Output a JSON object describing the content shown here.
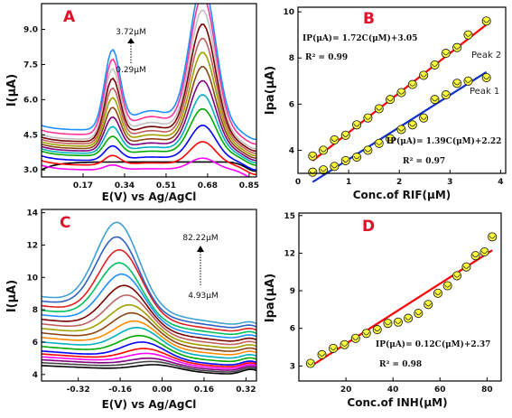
{
  "chart_data": [
    {
      "type": "line",
      "panel": "A",
      "xlabel": "E(V) vs Ag/AgCl",
      "ylabel": "I(μA)",
      "xticks": [
        "0.17",
        "0.34",
        "0.51",
        "0.68",
        "0.85"
      ],
      "yticks": [
        "3.0",
        "4.5",
        "6.0",
        "7.5",
        "9.0"
      ],
      "xlim": [
        0.0,
        0.88
      ],
      "ylim": [
        2.7,
        10.1
      ],
      "annotation_top": "3.72μM",
      "annotation_bottom": "0.29μM",
      "series_colors": [
        "#000000",
        "#ff00ff",
        "#ff0000",
        "#0000ff",
        "#00aa00",
        "#00b0c0",
        "#800080",
        "#8b4513",
        "#a0a000",
        "#c06060",
        "#7a0000",
        "#c0c0c0",
        "#ff3399",
        "#1e90ff"
      ],
      "peak1_potential": 0.29,
      "peak2_potential": 0.66,
      "peak1_heights": [
        0.0,
        0.2,
        0.4,
        0.6,
        0.8,
        1.1,
        1.4,
        1.7,
        2.0,
        2.3,
        2.6,
        2.9,
        3.1,
        3.3
      ],
      "peak2_heights": [
        0.0,
        0.5,
        1.0,
        1.5,
        2.0,
        2.5,
        3.0,
        3.5,
        4.0,
        4.5,
        5.0,
        5.5,
        5.9,
        6.2
      ],
      "start_levels": [
        3.0,
        3.2,
        3.4,
        3.6,
        3.8,
        3.9,
        4.0,
        4.1,
        4.2,
        4.3,
        4.4,
        4.5,
        4.7,
        4.9
      ]
    },
    {
      "type": "scatter",
      "panel": "B",
      "xlabel": "Conc.of RIF(μM)",
      "ylabel": "Ipa(μA)",
      "xticks": [
        "0",
        "1",
        "2",
        "3",
        "4"
      ],
      "yticks": [
        "4",
        "6",
        "8",
        "10"
      ],
      "xlim": [
        0,
        4.1
      ],
      "ylim": [
        3.0,
        10.2
      ],
      "series": [
        {
          "name": "Peak 2",
          "equation": "IP(μA)= 1.72C(μM)+3.05",
          "r2": "R² = 0.99",
          "slope": 1.72,
          "intercept": 3.05,
          "line_color": "#ff0000",
          "x": [
            0.29,
            0.5,
            0.72,
            0.94,
            1.16,
            1.38,
            1.6,
            1.82,
            2.04,
            2.26,
            2.48,
            2.7,
            2.92,
            3.14,
            3.36,
            3.72
          ],
          "y": [
            3.75,
            4.0,
            4.45,
            4.65,
            5.1,
            5.4,
            5.8,
            6.2,
            6.5,
            6.85,
            7.25,
            7.7,
            8.2,
            8.45,
            9.0,
            9.6
          ]
        },
        {
          "name": "Peak 1",
          "equation": "IP(μA)= 1.39C(μM)+2.22",
          "r2": "R² = 0.97",
          "slope": 1.39,
          "intercept": 2.22,
          "line_color": "#1030c8",
          "x": [
            0.29,
            0.5,
            0.72,
            0.94,
            1.16,
            1.38,
            1.6,
            1.82,
            2.04,
            2.26,
            2.48,
            2.7,
            2.92,
            3.14,
            3.36,
            3.72
          ],
          "y": [
            3.05,
            3.15,
            3.3,
            3.55,
            3.7,
            4.0,
            4.3,
            4.5,
            4.9,
            5.1,
            5.4,
            6.2,
            6.4,
            6.9,
            7.0,
            7.15
          ]
        }
      ]
    },
    {
      "type": "line",
      "panel": "C",
      "xlabel": "E(V) vs Ag/AgCl",
      "ylabel": "I(μA)",
      "xticks": [
        "-0.32",
        "-0.16",
        "0.00",
        "0.16",
        "0.32"
      ],
      "yticks": [
        "4",
        "6",
        "8",
        "10",
        "12",
        "14"
      ],
      "xlim": [
        -0.46,
        0.36
      ],
      "ylim": [
        3.6,
        14.2
      ],
      "annotation_top": "82.22μM",
      "annotation_bottom": "4.93μM",
      "series_colors": [
        "#000000",
        "#444444",
        "#800080",
        "#ff00ff",
        "#ff0000",
        "#0000ff",
        "#00aa00",
        "#00b0c0",
        "#ff8c00",
        "#8b4513",
        "#a0a000",
        "#c06060",
        "#7a0000",
        "#1e90ff",
        "#00c060",
        "#e02020",
        "#3060c0",
        "#40a0d0"
      ],
      "peak_potentials": [
        -0.02,
        -0.03,
        -0.04,
        -0.05,
        -0.06,
        -0.07,
        -0.08,
        -0.09,
        -0.1,
        -0.11,
        -0.12,
        -0.13,
        -0.14,
        -0.15,
        -0.16,
        -0.16,
        -0.17,
        -0.17
      ],
      "peak_currents": [
        4.6,
        4.8,
        5.0,
        5.3,
        5.6,
        6.0,
        6.4,
        6.9,
        7.3,
        7.8,
        8.3,
        8.9,
        9.5,
        10.2,
        10.9,
        11.7,
        12.5,
        13.4
      ],
      "base_levels": [
        4.3,
        4.4,
        4.5,
        4.6,
        4.7,
        4.8,
        5.0,
        5.2,
        5.4,
        5.6,
        5.8,
        6.0,
        6.2,
        6.4,
        6.6,
        6.8,
        7.0,
        7.2
      ]
    },
    {
      "type": "scatter",
      "panel": "D",
      "xlabel": "Conc.of INH(μM)",
      "ylabel": "Ipa(μA)",
      "xticks": [
        "20",
        "40",
        "60",
        "80"
      ],
      "yticks": [
        "3",
        "6",
        "9",
        "12",
        "15"
      ],
      "xlim": [
        0,
        86
      ],
      "ylim": [
        1.8,
        15.2
      ],
      "series": [
        {
          "name": "",
          "equation": "IP(μA)= 0.12C(μM)+2.37",
          "r2": "R² = 0.98",
          "slope": 0.12,
          "intercept": 2.37,
          "line_color": "#ff0000",
          "x": [
            4.93,
            9.8,
            14.6,
            19.4,
            24.1,
            28.7,
            33.3,
            37.8,
            42.2,
            46.5,
            50.8,
            55.0,
            59.1,
            63.2,
            67.2,
            71.2,
            75.1,
            78.9,
            82.22
          ],
          "y": [
            3.2,
            3.9,
            4.4,
            4.7,
            5.2,
            5.6,
            5.9,
            6.4,
            6.5,
            6.8,
            7.2,
            7.9,
            8.8,
            9.4,
            10.2,
            10.9,
            11.8,
            12.1,
            13.3
          ]
        }
      ]
    }
  ]
}
